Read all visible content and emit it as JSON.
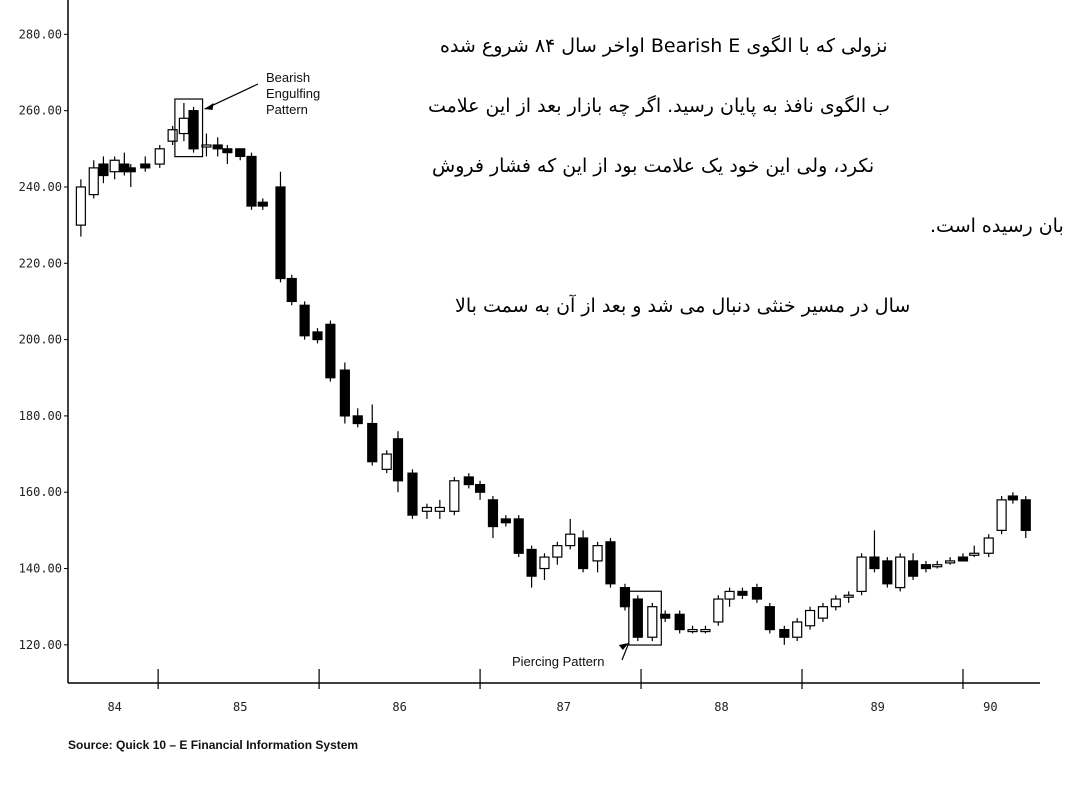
{
  "chart_data": {
    "type": "candlestick",
    "x": [
      84.52,
      84.6,
      84.66,
      84.73,
      84.79,
      84.83,
      84.92,
      85.01,
      85.09,
      85.16,
      85.22,
      85.3,
      85.37,
      85.43,
      85.51,
      85.58,
      85.65,
      85.76,
      85.83,
      85.91,
      85.99,
      86.07,
      86.16,
      86.24,
      86.33,
      86.42,
      86.49,
      86.58,
      86.67,
      86.75,
      86.84,
      86.93,
      87.0,
      87.08,
      87.16,
      87.24,
      87.32,
      87.4,
      87.48,
      87.56,
      87.64,
      87.73,
      87.81,
      87.9,
      87.98,
      88.07,
      88.15,
      88.24,
      88.32,
      88.4,
      88.48,
      88.55,
      88.63,
      88.72,
      88.8,
      88.89,
      88.97,
      89.05,
      89.13,
      89.21,
      89.29,
      89.37,
      89.45,
      89.53,
      89.61,
      89.69,
      89.77,
      89.84,
      89.92,
      90.0,
      90.07,
      90.16,
      90.24,
      90.31,
      90.39
    ],
    "open": [
      230,
      238,
      246,
      244,
      246,
      245,
      246,
      246,
      252,
      254,
      260,
      251,
      251,
      250,
      250,
      248,
      236,
      240,
      216,
      209,
      202,
      204,
      192,
      180,
      178,
      166,
      174,
      165,
      155,
      155,
      155,
      164,
      162,
      158,
      153,
      153,
      145,
      140,
      143,
      146,
      148,
      142,
      147,
      135,
      132,
      122,
      128,
      128,
      124,
      124,
      126,
      132,
      134,
      135,
      130,
      124,
      122,
      125,
      127,
      130,
      133,
      134,
      143,
      142,
      135,
      142,
      141,
      141,
      142,
      143,
      144,
      144,
      150,
      159,
      158
    ],
    "high": [
      242,
      247,
      248,
      248,
      249,
      246,
      248,
      251,
      256,
      262,
      261,
      254,
      253,
      251,
      250,
      249,
      237,
      244,
      217,
      210,
      203,
      205,
      194,
      182,
      183,
      171,
      176,
      166,
      157,
      158,
      164,
      165,
      163,
      159,
      154,
      154,
      146,
      144,
      147,
      153,
      150,
      147,
      148,
      136,
      133,
      131,
      129,
      129,
      125,
      125,
      133,
      135,
      135,
      136,
      131,
      125,
      127,
      130,
      131,
      133,
      134,
      144,
      150,
      143,
      144,
      144,
      142,
      142,
      143,
      144,
      146,
      149,
      159,
      160,
      159
    ],
    "low": [
      227,
      237,
      241,
      242,
      243,
      240,
      244,
      245,
      251,
      252,
      249,
      248,
      248,
      246,
      247,
      234,
      234,
      215,
      209,
      200,
      199,
      189,
      178,
      177,
      167,
      165,
      160,
      153,
      153,
      153,
      154,
      161,
      158,
      148,
      151,
      143,
      135,
      137,
      141,
      145,
      139,
      139,
      135,
      129,
      121,
      121,
      126,
      123,
      123,
      123,
      125,
      130,
      132,
      131,
      123,
      120,
      121,
      124,
      126,
      129,
      131,
      133,
      139,
      135,
      134,
      137,
      139,
      140,
      141,
      142,
      143,
      143,
      149,
      157,
      148
    ],
    "close": [
      240,
      245,
      243,
      247,
      244,
      244,
      245,
      250,
      255,
      258,
      250,
      251,
      250,
      249,
      248,
      235,
      235,
      216,
      210,
      201,
      200,
      190,
      180,
      178,
      168,
      170,
      163,
      154,
      156,
      156,
      163,
      162,
      160,
      151,
      152,
      144,
      138,
      143,
      146,
      149,
      140,
      146,
      136,
      130,
      122,
      130,
      127,
      124,
      124,
      124,
      132,
      134,
      133,
      132,
      124,
      122,
      126,
      129,
      130,
      132,
      133,
      143,
      140,
      136,
      143,
      138,
      140,
      141,
      142,
      142,
      144,
      148,
      158,
      158,
      150
    ],
    "xlim": [
      84.44,
      90.64
    ],
    "ylim": [
      110,
      289
    ],
    "yticks": [
      {
        "value": 120,
        "label": "120.00"
      },
      {
        "value": 140,
        "label": "140.00"
      },
      {
        "value": 160,
        "label": "160.00"
      },
      {
        "value": 180,
        "label": "180.00"
      },
      {
        "value": 200,
        "label": "200.00"
      },
      {
        "value": 220,
        "label": "220.00"
      },
      {
        "value": 240,
        "label": "240.00"
      },
      {
        "value": 260,
        "label": "260.00"
      },
      {
        "value": 280,
        "label": "280.00"
      }
    ],
    "xticks": [
      {
        "value": 84.73,
        "label": "84"
      },
      {
        "value": 85.51,
        "label": "85"
      },
      {
        "value": 86.5,
        "label": "86"
      },
      {
        "value": 87.52,
        "label": "87"
      },
      {
        "value": 88.5,
        "label": "88"
      },
      {
        "value": 89.47,
        "label": "89"
      },
      {
        "value": 90.17,
        "label": "90"
      }
    ],
    "year_marks": [
      85,
      86,
      87,
      88,
      89,
      90
    ],
    "annotations": [
      {
        "lines": [
          "Bearish",
          "Engulfing",
          "Pattern"
        ]
      },
      {
        "lines": [
          "Piercing Pattern"
        ]
      }
    ],
    "source": "Source: Quick 10 – E Financial Information System"
  },
  "text_lines": [
    "نزولی که با الگوی Bearish E اواخر سال ۸۴ شروع شده",
    "ب الگوی نافذ به پایان رسید. اگر چه بازار بعد از این علامت",
    "نکرد، ولی این خود یک علامت بود از این که فشار فروش",
    "بان رسیده است.",
    "سال در مسیر خنثی دنبال می شد و بعد از آن به سمت بالا"
  ]
}
